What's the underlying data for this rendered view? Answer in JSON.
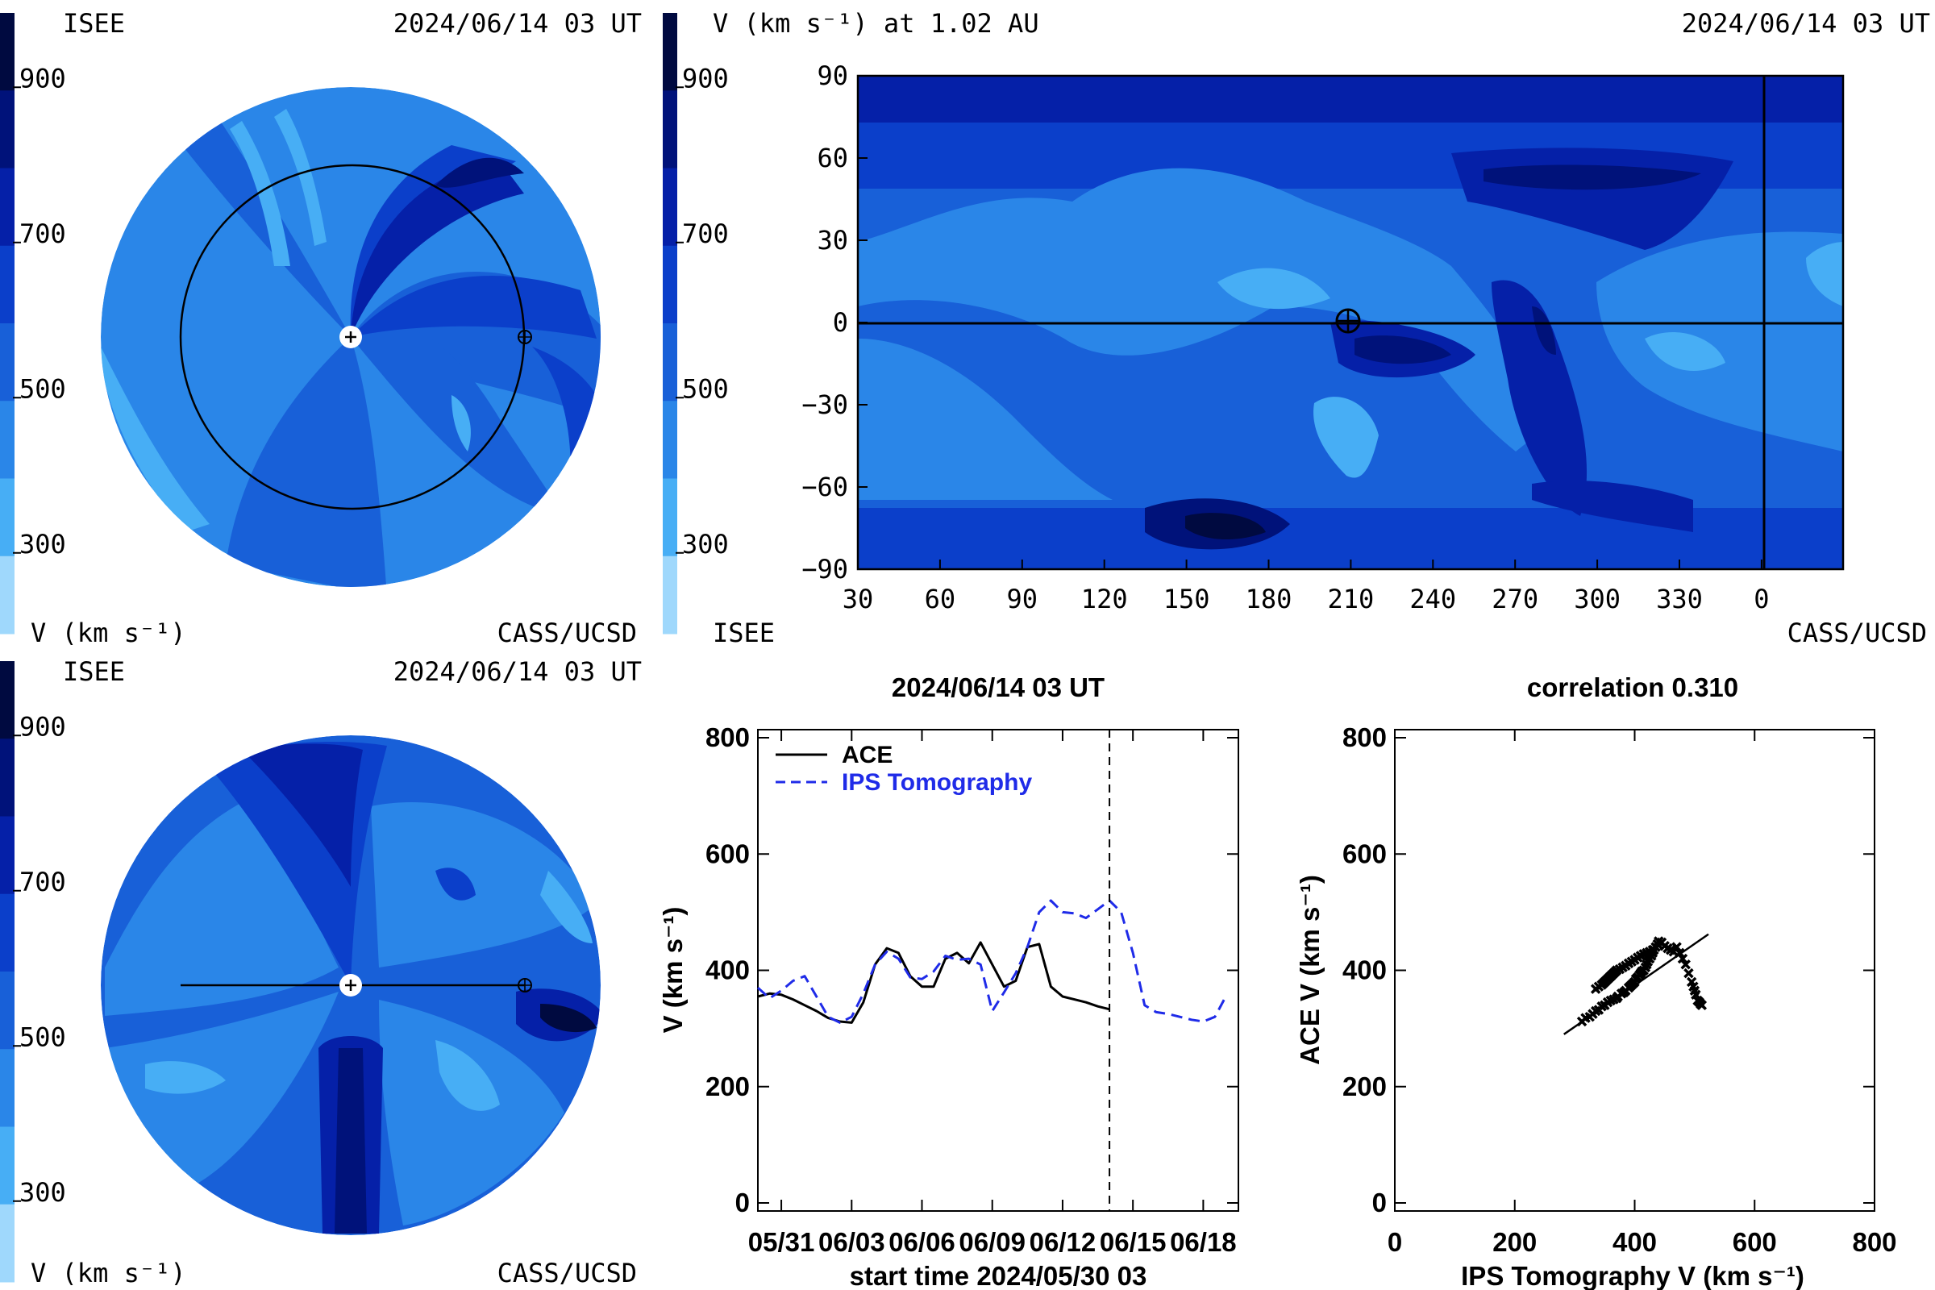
{
  "colors": {
    "v900": "#000a40",
    "v800": "#00127a",
    "v700": "#0520a8",
    "v600": "#0b3fca",
    "v500": "#1860d8",
    "v400": "#2a86e8",
    "v300": "#47aef5",
    "v200": "#9fd8fc",
    "ace": "#000000",
    "ips": "#1f2be8"
  },
  "top_left": {
    "source": "ISEE",
    "timestamp": "2024/06/14 03 UT",
    "credit": "CASS/UCSD",
    "units_label": "V (km s⁻¹)"
  },
  "colorbar_ticks": [
    "900",
    "700",
    "500",
    "300"
  ],
  "top_right": {
    "title": "V (km s⁻¹) at 1.02 AU",
    "timestamp": "2024/06/14 03 UT",
    "source": "ISEE",
    "credit": "CASS/UCSD",
    "lat_ticks": [
      "90",
      "60",
      "30",
      "0",
      "−30",
      "−60",
      "−90"
    ],
    "lon_ticks": [
      "30",
      "60",
      "90",
      "120",
      "150",
      "180",
      "210",
      "240",
      "270",
      "300",
      "330",
      "0"
    ]
  },
  "bottom_left": {
    "source": "ISEE",
    "timestamp": "2024/06/14 03 UT",
    "credit": "CASS/UCSD",
    "units_label": "V (km s⁻¹)"
  },
  "chart_data": [
    {
      "type": "line",
      "title": "2024/06/14 03 UT",
      "xlabel": "start time 2024/05/30 03",
      "ylabel": "V (km s⁻¹)",
      "ylim": [
        0,
        800
      ],
      "xlim": [
        0,
        20.5
      ],
      "x_ticks": [
        "05/31",
        "06/03",
        "06/06",
        "06/09",
        "06/12",
        "06/15",
        "06/18"
      ],
      "y_ticks": [
        "800",
        "600",
        "400",
        "200",
        "0"
      ],
      "legend_position": "top-left",
      "current_time_day": 15.0,
      "series": [
        {
          "name": "ACE",
          "style": "solid",
          "x": [
            0,
            0.5,
            1,
            1.5,
            2,
            2.5,
            3,
            3.5,
            4,
            4.5,
            5,
            5.5,
            6,
            6.5,
            7,
            7.5,
            8,
            8.5,
            9,
            9.5,
            10,
            10.5,
            11,
            11.5,
            12,
            12.5,
            13,
            13.5,
            14,
            14.5,
            15
          ],
          "values": [
            355,
            360,
            358,
            350,
            340,
            330,
            318,
            312,
            310,
            345,
            410,
            438,
            430,
            390,
            372,
            372,
            420,
            430,
            412,
            448,
            410,
            372,
            382,
            440,
            445,
            372,
            355,
            350,
            345,
            338,
            333
          ]
        },
        {
          "name": "IPS Tomography",
          "style": "dashed",
          "x": [
            0,
            0.5,
            1,
            1.5,
            2,
            2.5,
            3,
            3.5,
            4,
            4.5,
            5,
            5.5,
            6,
            6.5,
            7,
            7.5,
            8,
            8.5,
            9,
            9.5,
            10,
            10.5,
            11,
            11.5,
            12,
            12.5,
            13,
            13.5,
            14,
            14.5,
            15,
            15.5,
            16,
            16.5,
            17,
            17.5,
            18,
            18.5,
            19,
            19.5,
            20
          ],
          "values": [
            370,
            352,
            365,
            382,
            390,
            355,
            320,
            310,
            320,
            360,
            410,
            432,
            420,
            388,
            385,
            398,
            425,
            418,
            420,
            410,
            330,
            362,
            395,
            440,
            500,
            520,
            500,
            498,
            490,
            505,
            520,
            500,
            430,
            340,
            328,
            325,
            320,
            315,
            312,
            320,
            358
          ]
        }
      ]
    },
    {
      "type": "scatter",
      "title": "correlation 0.310",
      "xlabel": "IPS Tomography V (km s⁻¹)",
      "ylabel": "ACE V (km s⁻¹)",
      "xlim": [
        0,
        800
      ],
      "ylim": [
        0,
        800
      ],
      "x_ticks": [
        "0",
        "200",
        "400",
        "600",
        "800"
      ],
      "y_ticks": [
        "800",
        "600",
        "400",
        "200",
        "0"
      ],
      "fit_line": {
        "x": [
          282,
          523
        ],
        "y": [
          290,
          462
        ]
      },
      "x": [
        312,
        318,
        325,
        330,
        335,
        340,
        345,
        350,
        355,
        360,
        365,
        370,
        372,
        378,
        382,
        385,
        390,
        392,
        395,
        398,
        400,
        402,
        405,
        408,
        410,
        412,
        415,
        418,
        420,
        422,
        425,
        428,
        430,
        432,
        435,
        438,
        440,
        445,
        450,
        455,
        460,
        465,
        470,
        475,
        480,
        485,
        490,
        495,
        498,
        500,
        502,
        505,
        508,
        510,
        512,
        345,
        350,
        355,
        360,
        365,
        370,
        375,
        380,
        385,
        390,
        395,
        400,
        405,
        410,
        415,
        420,
        425,
        430,
        335,
        340,
        348,
        352,
        358,
        362,
        368
      ],
      "y": [
        312,
        318,
        320,
        325,
        330,
        332,
        338,
        340,
        345,
        348,
        350,
        352,
        355,
        360,
        362,
        365,
        370,
        372,
        375,
        378,
        380,
        385,
        388,
        392,
        395,
        398,
        400,
        405,
        410,
        415,
        420,
        425,
        430,
        435,
        440,
        445,
        450,
        448,
        442,
        438,
        435,
        432,
        440,
        430,
        420,
        410,
        395,
        380,
        372,
        365,
        358,
        348,
        345,
        342,
        340,
        375,
        380,
        385,
        390,
        395,
        400,
        402,
        405,
        408,
        412,
        415,
        418,
        422,
        425,
        428,
        430,
        432,
        435,
        368,
        372,
        378,
        382,
        388,
        392,
        398
      ]
    }
  ]
}
